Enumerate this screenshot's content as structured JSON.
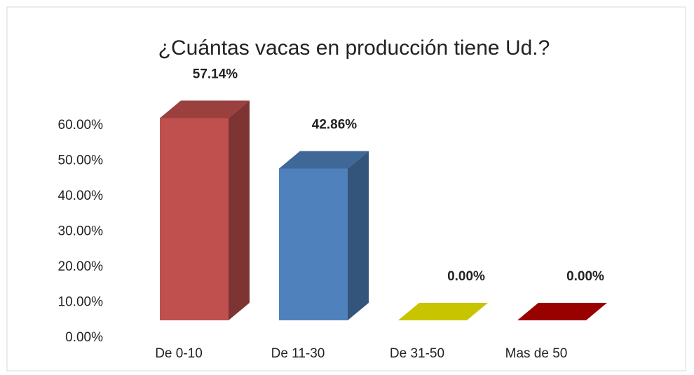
{
  "chart_data": {
    "type": "bar3d",
    "title": "¿Cuántas vacas en producción tiene Ud.?",
    "categories": [
      "De 0-10",
      "De 11-30",
      "De 31-50",
      "Mas de 50"
    ],
    "values": [
      57.14,
      42.86,
      0,
      0
    ],
    "value_labels": [
      "57.14%",
      "42.86%",
      "0.00%",
      "0.00%"
    ],
    "colors": [
      "#c0504d",
      "#4f81bd",
      "#c8c400",
      "#990000"
    ],
    "ylim": [
      0,
      60
    ],
    "yticks": [
      {
        "value": 0,
        "label": "0.00%"
      },
      {
        "value": 10,
        "label": "10.00%"
      },
      {
        "value": 20,
        "label": "20.00%"
      },
      {
        "value": 30,
        "label": "30.00%"
      },
      {
        "value": 40,
        "label": "40.00%"
      },
      {
        "value": 50,
        "label": "50.00%"
      },
      {
        "value": 60,
        "label": "60.00%"
      }
    ],
    "grid": false
  }
}
